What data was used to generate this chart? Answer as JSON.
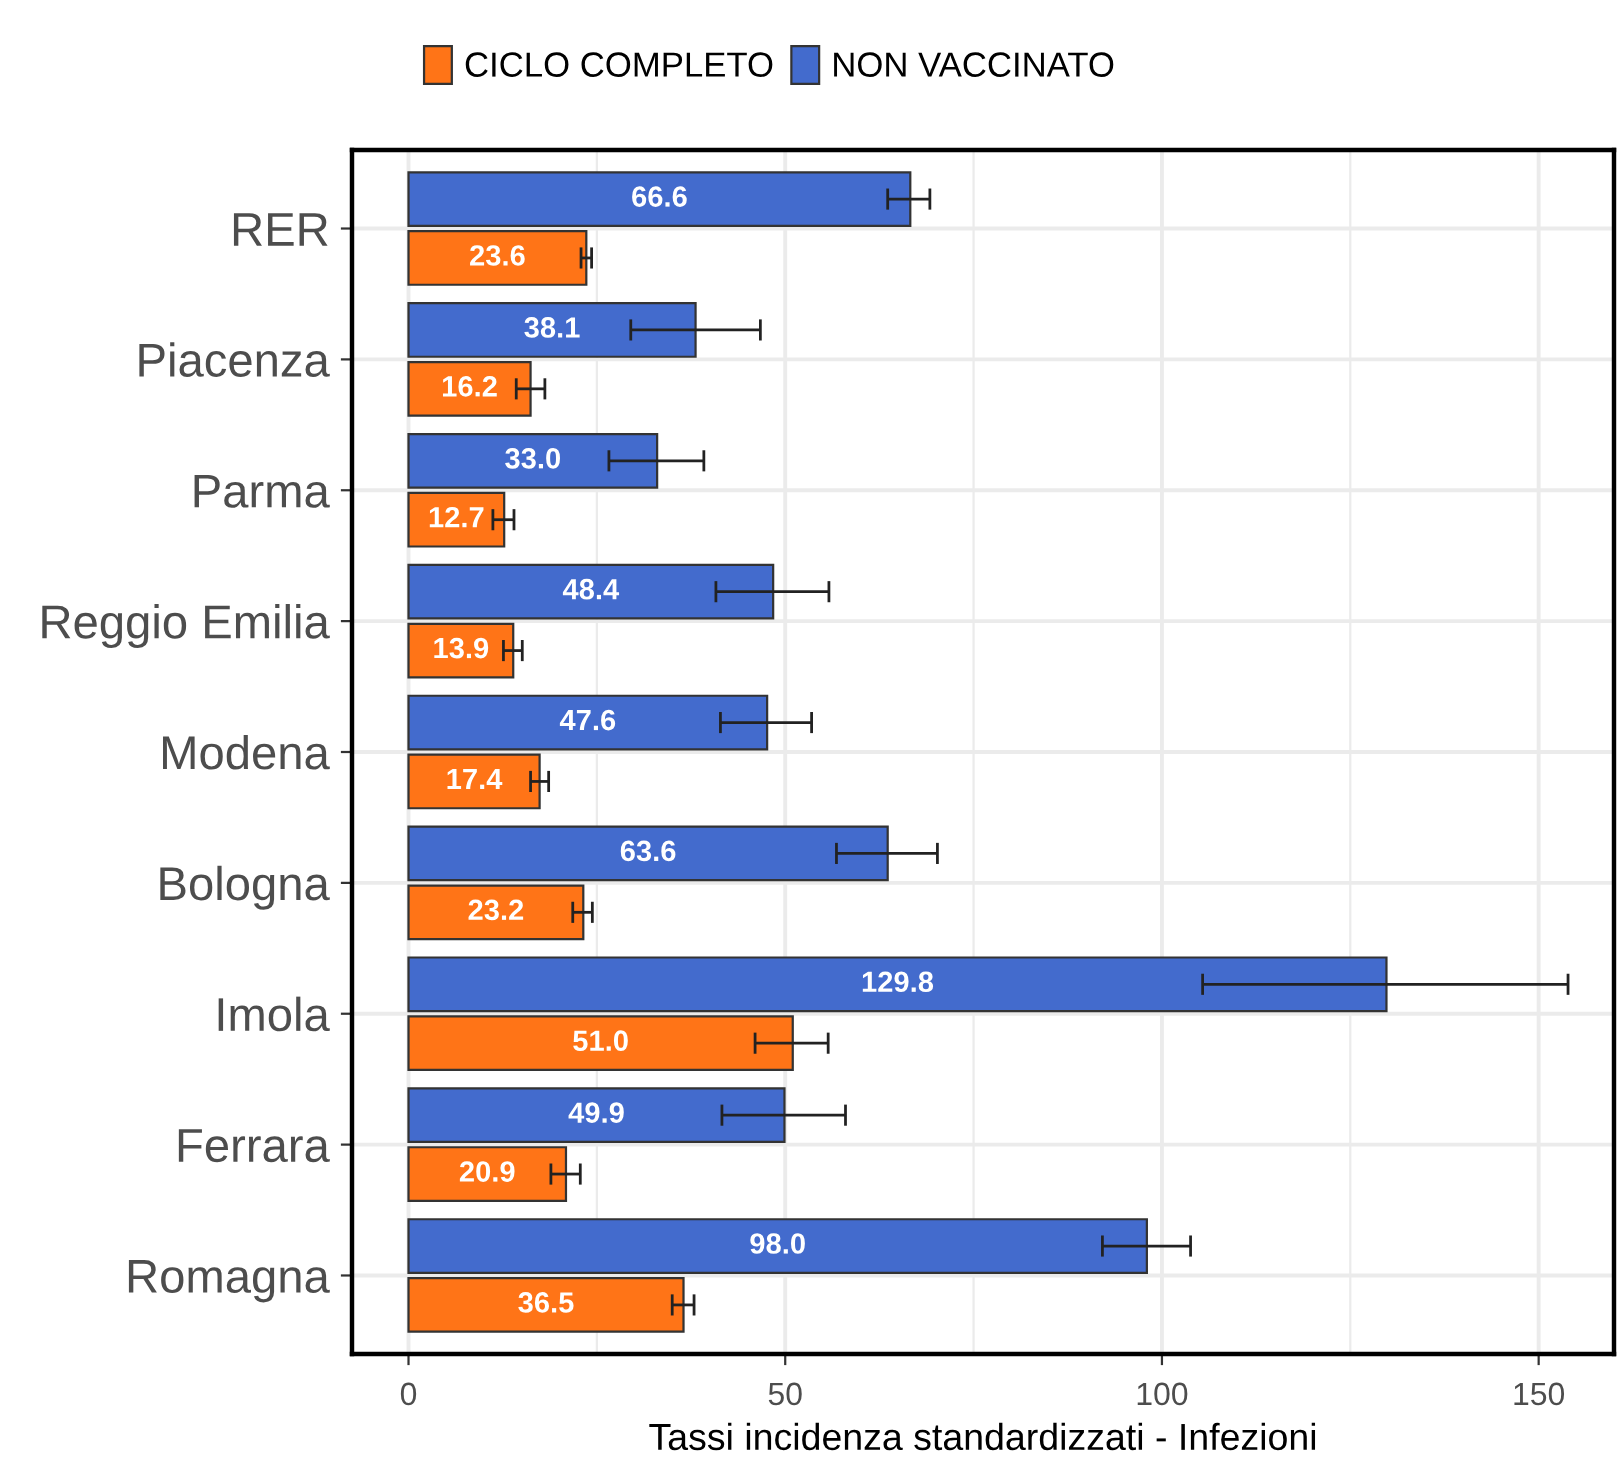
{
  "chart_data": {
    "type": "bar",
    "orientation": "horizontal",
    "categories": [
      "RER",
      "Piacenza",
      "Parma",
      "Reggio Emilia",
      "Modena",
      "Bologna",
      "Imola",
      "Ferrara",
      "Romagna"
    ],
    "series": [
      {
        "name": "CICLO COMPLETO",
        "color": "#ff7417",
        "values": [
          23.6,
          16.2,
          12.7,
          13.9,
          17.4,
          23.2,
          51,
          20.9,
          36.5
        ],
        "value_labels": [
          "23.6",
          "16.2",
          "12.7",
          "13.9",
          "17.4",
          "23.2",
          "51.0",
          "20.9",
          "36.5"
        ],
        "errors": [
          [
            22.9,
            24.3
          ],
          [
            14.3,
            18.1
          ],
          [
            11.2,
            14.0
          ],
          [
            12.6,
            15.1
          ],
          [
            16.2,
            18.6
          ],
          [
            21.8,
            24.4
          ],
          [
            46.0,
            55.7
          ],
          [
            18.9,
            22.8
          ],
          [
            35.0,
            37.9
          ]
        ]
      },
      {
        "name": "NON VACCINATO",
        "color": "#436bcd",
        "values": [
          66.6,
          38.1,
          33,
          48.4,
          47.6,
          63.6,
          129.8,
          49.9,
          98
        ],
        "value_labels": [
          "66.6",
          "38.1",
          "33.0",
          "48.4",
          "47.6",
          "63.6",
          "129.8",
          "49.9",
          "98.0"
        ],
        "errors": [
          [
            63.6,
            69.2
          ],
          [
            29.5,
            46.7
          ],
          [
            26.6,
            39.2
          ],
          [
            40.8,
            55.8
          ],
          [
            41.4,
            53.5
          ],
          [
            56.8,
            70.2
          ],
          [
            105.4,
            153.9
          ],
          [
            41.6,
            58.0
          ],
          [
            92.1,
            103.8
          ]
        ]
      }
    ],
    "xlabel": "Tassi incidenza standardizzati - Infezioni",
    "xlim": [
      -7.5,
      160
    ],
    "xticks": [
      0,
      {
        "value": 25,
        "label": null
      },
      50,
      {
        "value": 75,
        "label": null
      },
      100,
      {
        "value": 125,
        "label": null
      },
      150
    ],
    "grid": true,
    "legend": "top"
  }
}
